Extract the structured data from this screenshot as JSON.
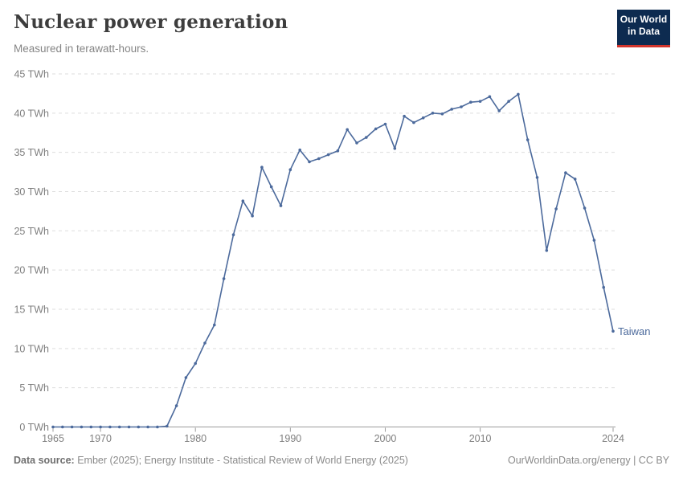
{
  "header": {
    "title": "Nuclear power generation",
    "subtitle": "Measured in terawatt-hours.",
    "logo": {
      "line1": "Our World",
      "line2": "in Data"
    }
  },
  "footer": {
    "source_label": "Data source:",
    "source_text": " Ember (2025); Energy Institute - Statistical Review of World Energy (2025)",
    "link_text": "OurWorldinData.org/energy | CC BY"
  },
  "colors": {
    "line": "#4C6A9C",
    "grid": "#DEDEDE",
    "axis": "#9B9B9B",
    "tick_text": "#7F7F7F",
    "title_text": "#3D3D3D",
    "subtitle_text": "#858585",
    "footer_text": "#8A8A8A",
    "logo_bg": "#0D2B50",
    "logo_red": "#D2352C"
  },
  "chart_data": {
    "type": "line",
    "title": "Nuclear power generation",
    "subtitle": "Measured in terawatt-hours.",
    "unit": "TWh",
    "grid": true,
    "ylim": [
      0,
      45
    ],
    "y_ticks": [
      0,
      5,
      10,
      15,
      20,
      25,
      30,
      35,
      40,
      45
    ],
    "y_tick_suffix": " TWh",
    "x_ticks": [
      1965,
      1970,
      1980,
      1990,
      2000,
      2010,
      2024
    ],
    "x": [
      1965,
      1966,
      1967,
      1968,
      1969,
      1970,
      1971,
      1972,
      1973,
      1974,
      1975,
      1976,
      1977,
      1978,
      1979,
      1980,
      1981,
      1982,
      1983,
      1984,
      1985,
      1986,
      1987,
      1988,
      1989,
      1990,
      1991,
      1992,
      1993,
      1994,
      1995,
      1996,
      1997,
      1998,
      1999,
      2000,
      2001,
      2002,
      2003,
      2004,
      2005,
      2006,
      2007,
      2008,
      2009,
      2010,
      2011,
      2012,
      2013,
      2014,
      2015,
      2016,
      2017,
      2018,
      2019,
      2020,
      2021,
      2022,
      2023,
      2024
    ],
    "series": [
      {
        "name": "Taiwan",
        "values": [
          0,
          0,
          0,
          0,
          0,
          0,
          0,
          0,
          0,
          0,
          0,
          0,
          0.1,
          2.7,
          6.3,
          8.1,
          10.7,
          13.0,
          18.9,
          24.5,
          28.8,
          26.9,
          33.1,
          30.6,
          28.2,
          32.8,
          35.3,
          33.8,
          34.2,
          34.7,
          35.2,
          37.9,
          36.2,
          36.9,
          38.0,
          38.6,
          35.5,
          39.6,
          38.8,
          39.4,
          40.0,
          39.9,
          40.5,
          40.8,
          41.4,
          41.5,
          42.1,
          40.3,
          41.5,
          42.4,
          36.6,
          31.8,
          22.5,
          27.8,
          32.4,
          31.6,
          27.9,
          23.8,
          17.8,
          12.2
        ]
      }
    ]
  }
}
